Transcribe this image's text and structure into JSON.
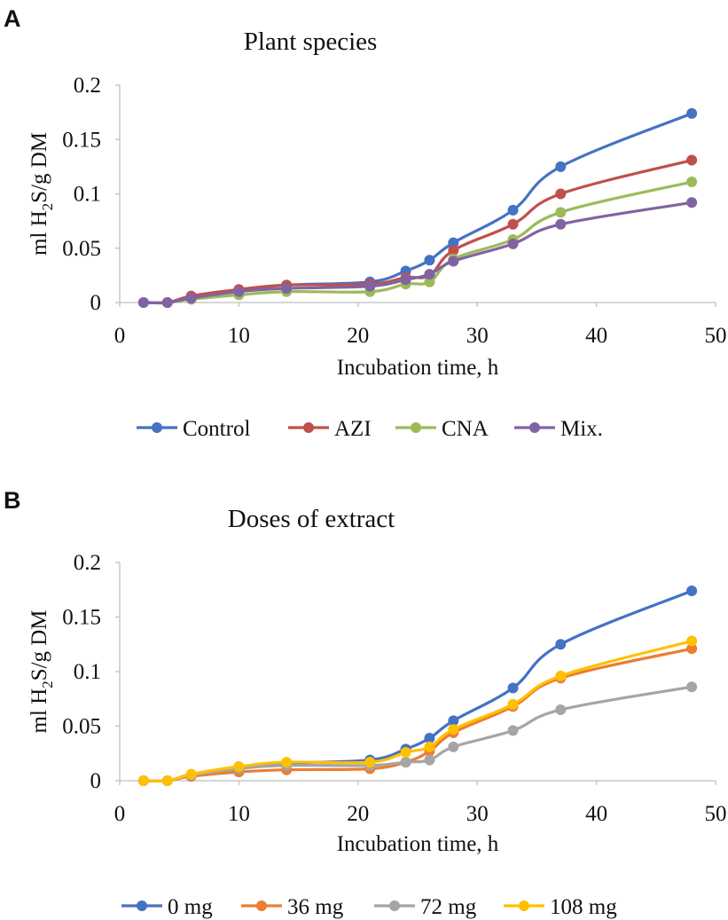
{
  "chart_data": [
    {
      "panel": "A",
      "type": "line",
      "title": "Plant species",
      "xlabel": "Incubation time, h",
      "ylabel": {
        "prefix": "ml H",
        "subscript": "2",
        "suffix": "S/g DM"
      },
      "xlim": [
        0,
        50
      ],
      "ylim": [
        0,
        0.2
      ],
      "x_ticks": [
        0,
        10,
        20,
        30,
        40,
        50
      ],
      "x_tick_labels": [
        "0",
        "10",
        "20",
        "30",
        "40",
        "50"
      ],
      "y_ticks": [
        0,
        0.05,
        0.1,
        0.15,
        0.2
      ],
      "y_tick_labels": [
        "0",
        "0.05",
        "0.1",
        "0.15",
        "0.2"
      ],
      "legend_position": "bottom",
      "x": [
        2,
        4,
        6,
        10,
        14,
        21,
        24,
        26,
        28,
        33,
        37,
        48
      ],
      "series": [
        {
          "name": "Control",
          "color": "#4472c4",
          "values": [
            0,
            0,
            0.005,
            0.011,
            0.016,
            0.019,
            0.029,
            0.039,
            0.055,
            0.085,
            0.125,
            0.174
          ]
        },
        {
          "name": "AZI",
          "color": "#c0504d",
          "values": [
            0,
            0,
            0.006,
            0.012,
            0.016,
            0.017,
            0.023,
            0.025,
            0.048,
            0.072,
            0.1,
            0.131
          ]
        },
        {
          "name": "CNA",
          "color": "#9bbb59",
          "values": [
            0,
            0,
            0.003,
            0.007,
            0.01,
            0.01,
            0.017,
            0.019,
            0.04,
            0.058,
            0.083,
            0.111
          ]
        },
        {
          "name": "Mix.",
          "color": "#8064a2",
          "values": [
            0,
            0,
            0.004,
            0.01,
            0.013,
            0.015,
            0.021,
            0.026,
            0.038,
            0.054,
            0.072,
            0.092
          ]
        }
      ]
    },
    {
      "panel": "B",
      "type": "line",
      "title": "Doses of extract",
      "xlabel": "Incubation time, h",
      "ylabel": {
        "prefix": "ml H",
        "subscript": "2",
        "suffix": "S/g DM"
      },
      "xlim": [
        0,
        50
      ],
      "ylim": [
        0,
        0.2
      ],
      "x_ticks": [
        0,
        10,
        20,
        30,
        40,
        50
      ],
      "x_tick_labels": [
        "0",
        "10",
        "20",
        "30",
        "40",
        "50"
      ],
      "y_ticks": [
        0,
        0.05,
        0.1,
        0.15,
        0.2
      ],
      "y_tick_labels": [
        "0",
        "0.05",
        "0.1",
        "0.15",
        "0.2"
      ],
      "legend_position": "bottom",
      "x": [
        2,
        4,
        6,
        10,
        14,
        21,
        24,
        26,
        28,
        33,
        37,
        48
      ],
      "series": [
        {
          "name": "0 mg",
          "color": "#4472c4",
          "values": [
            0,
            0,
            0.005,
            0.011,
            0.016,
            0.019,
            0.029,
            0.039,
            0.055,
            0.085,
            0.125,
            0.174
          ]
        },
        {
          "name": "36 mg",
          "color": "#ed7d31",
          "values": [
            0,
            0,
            0.004,
            0.008,
            0.01,
            0.011,
            0.017,
            0.027,
            0.044,
            0.068,
            0.094,
            0.121
          ]
        },
        {
          "name": "72 mg",
          "color": "#a5a5a5",
          "values": [
            0,
            0,
            0.005,
            0.011,
            0.014,
            0.014,
            0.017,
            0.019,
            0.031,
            0.046,
            0.065,
            0.086
          ]
        },
        {
          "name": "108 mg",
          "color": "#ffc000",
          "values": [
            0,
            0,
            0.006,
            0.013,
            0.017,
            0.017,
            0.026,
            0.031,
            0.047,
            0.07,
            0.096,
            0.128
          ]
        }
      ]
    }
  ]
}
